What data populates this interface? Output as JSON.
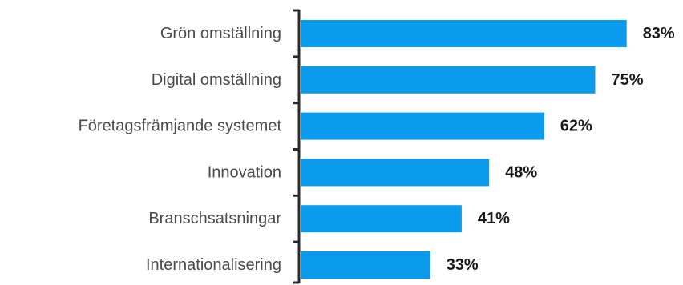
{
  "colors": {
    "bar": "#0b9bec",
    "axis": "#2b2b2b",
    "category_text": "#4a4a4a",
    "value_text": "#1a1a1a"
  },
  "chart_data": {
    "type": "bar",
    "orientation": "horizontal",
    "categories": [
      "Grön omställning",
      "Digital omställning",
      "Företagsfrämjande systemet",
      "Innovation",
      "Branschsatsningar",
      "Internationalisering"
    ],
    "values": [
      83,
      75,
      62,
      48,
      41,
      33
    ],
    "value_labels": [
      "83%",
      "75%",
      "62%",
      "48%",
      "41%",
      "33%"
    ],
    "unit": "%",
    "xlim": [
      0,
      100
    ],
    "grid": false,
    "legend": "none",
    "title": "",
    "xlabel": "",
    "ylabel": ""
  }
}
